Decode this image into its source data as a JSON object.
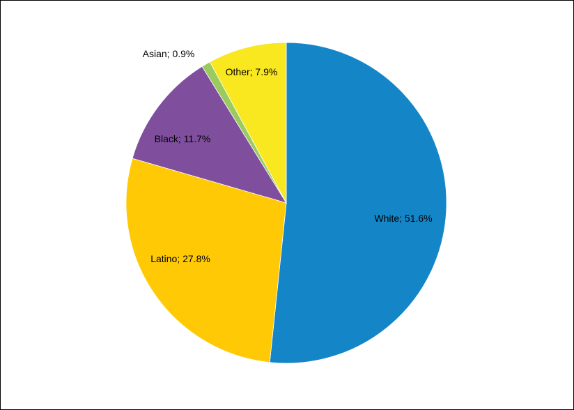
{
  "chart_data": {
    "type": "pie",
    "title": "",
    "start_angle": "12 o'clock",
    "direction": "clockwise",
    "slices": [
      {
        "label": "White",
        "value": 51.6,
        "display": "White; 51.6%",
        "color": "#1486C7"
      },
      {
        "label": "Latino",
        "value": 27.8,
        "display": "Latino; 27.8%",
        "color": "#FFCA05"
      },
      {
        "label": "Black",
        "value": 11.7,
        "display": "Black; 11.7%",
        "color": "#7F4F9E"
      },
      {
        "label": "Asian",
        "value": 0.9,
        "display": "Asian; 0.9%",
        "color": "#9BCB5F"
      },
      {
        "label": "Other",
        "value": 7.9,
        "display": "Other; 7.9%",
        "color": "#F9E71F"
      }
    ],
    "legend": "none"
  }
}
